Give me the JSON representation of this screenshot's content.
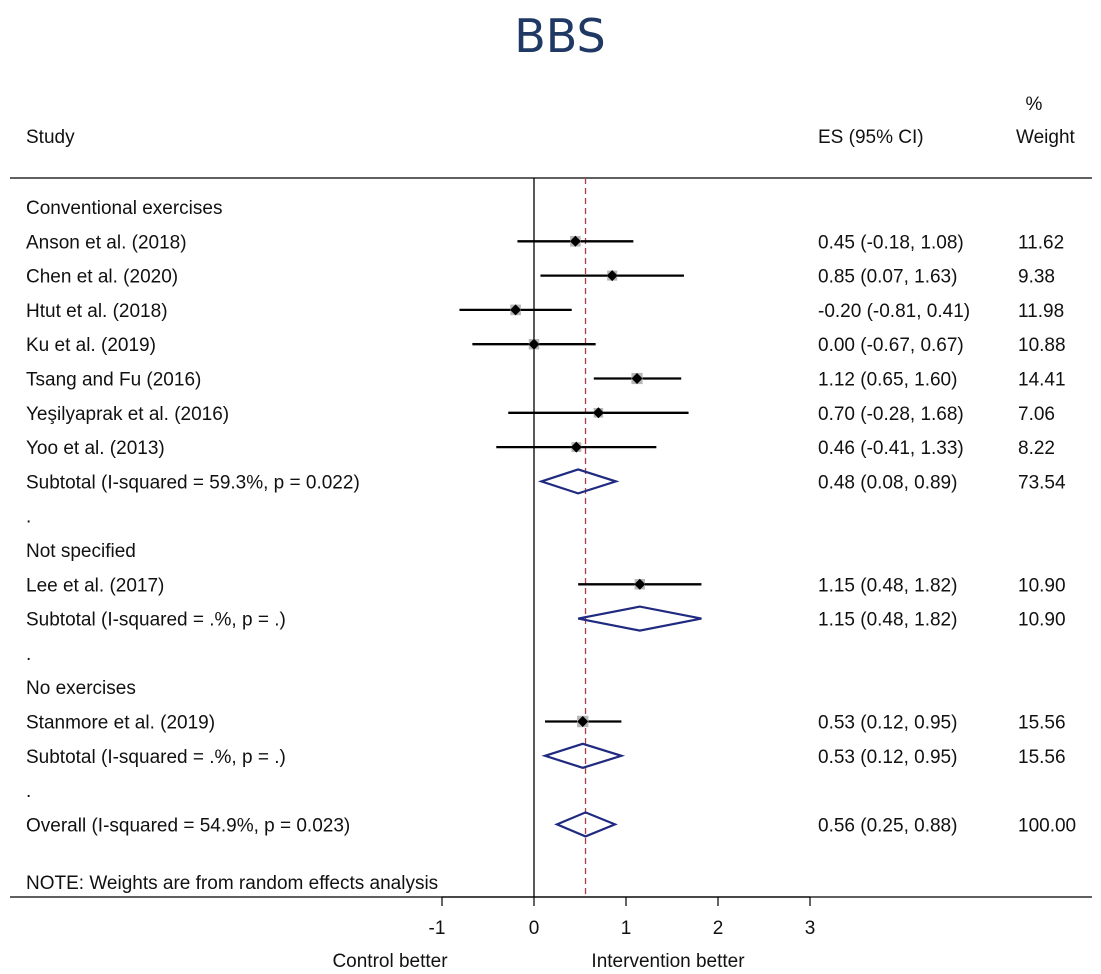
{
  "chart_data": {
    "type": "forest",
    "title": "BBS",
    "headers": {
      "study": "Study",
      "es": "ES (95% CI)",
      "weight_line1": "%",
      "weight_line2": "Weight"
    },
    "rows": [
      {
        "kind": "group",
        "label": "Conventional exercises"
      },
      {
        "kind": "study",
        "label": "Anson et al. (2018)",
        "es": 0.45,
        "lo": -0.18,
        "hi": 1.08,
        "es_text": "0.45 (-0.18, 1.08)",
        "weight": 11.62,
        "weight_text": "11.62"
      },
      {
        "kind": "study",
        "label": "Chen et al. (2020)",
        "es": 0.85,
        "lo": 0.07,
        "hi": 1.63,
        "es_text": "0.85 (0.07, 1.63)",
        "weight": 9.38,
        "weight_text": "9.38"
      },
      {
        "kind": "study",
        "label": "Htut et al. (2018)",
        "es": -0.2,
        "lo": -0.81,
        "hi": 0.41,
        "es_text": "-0.20 (-0.81, 0.41)",
        "weight": 11.98,
        "weight_text": "11.98"
      },
      {
        "kind": "study",
        "label": "Ku et al. (2019)",
        "es": 0.0,
        "lo": -0.67,
        "hi": 0.67,
        "es_text": "0.00 (-0.67, 0.67)",
        "weight": 10.88,
        "weight_text": "10.88"
      },
      {
        "kind": "study",
        "label": "Tsang and Fu (2016)",
        "es": 1.12,
        "lo": 0.65,
        "hi": 1.6,
        "es_text": "1.12 (0.65, 1.60)",
        "weight": 14.41,
        "weight_text": "14.41"
      },
      {
        "kind": "study",
        "label": "Yeşilyaprak et al. (2016)",
        "es": 0.7,
        "lo": -0.28,
        "hi": 1.68,
        "es_text": "0.70 (-0.28, 1.68)",
        "weight": 7.06,
        "weight_text": "7.06"
      },
      {
        "kind": "study",
        "label": "Yoo et al. (2013)",
        "es": 0.46,
        "lo": -0.41,
        "hi": 1.33,
        "es_text": "0.46 (-0.41, 1.33)",
        "weight": 8.22,
        "weight_text": "8.22"
      },
      {
        "kind": "subtotal",
        "label": "Subtotal  (I-squared = 59.3%, p = 0.022)",
        "es": 0.48,
        "lo": 0.08,
        "hi": 0.89,
        "es_text": "0.48 (0.08, 0.89)",
        "weight_text": "73.54"
      },
      {
        "kind": "dot",
        "label": "."
      },
      {
        "kind": "group",
        "label": "Not specified"
      },
      {
        "kind": "study",
        "label": "Lee et al. (2017)",
        "es": 1.15,
        "lo": 0.48,
        "hi": 1.82,
        "es_text": "1.15 (0.48, 1.82)",
        "weight": 10.9,
        "weight_text": "10.90"
      },
      {
        "kind": "subtotal",
        "label": "Subtotal  (I-squared = .%, p = .)",
        "es": 1.15,
        "lo": 0.48,
        "hi": 1.82,
        "es_text": "1.15 (0.48, 1.82)",
        "weight_text": "10.90"
      },
      {
        "kind": "dot",
        "label": "."
      },
      {
        "kind": "group",
        "label": "No exercises"
      },
      {
        "kind": "study",
        "label": "Stanmore et al. (2019)",
        "es": 0.53,
        "lo": 0.12,
        "hi": 0.95,
        "es_text": "0.53 (0.12, 0.95)",
        "weight": 15.56,
        "weight_text": "15.56"
      },
      {
        "kind": "subtotal",
        "label": "Subtotal  (I-squared = .%, p = .)",
        "es": 0.53,
        "lo": 0.12,
        "hi": 0.95,
        "es_text": "0.53 (0.12, 0.95)",
        "weight_text": "15.56"
      },
      {
        "kind": "dot",
        "label": "."
      },
      {
        "kind": "overall",
        "label": "Overall  (I-squared = 54.9%, p = 0.023)",
        "es": 0.56,
        "lo": 0.25,
        "hi": 0.88,
        "es_text": "0.56 (0.25, 0.88)",
        "weight_text": "100.00"
      }
    ],
    "note": "NOTE: Weights are from random effects analysis",
    "xticks": [
      -1,
      0,
      1,
      2,
      3
    ],
    "xtick_labels": [
      "-1",
      "0",
      "1",
      "2",
      "3"
    ],
    "xlim": [
      -1,
      3
    ],
    "null_line": 0,
    "overall_line": 0.56,
    "xlabel_left": "Control better",
    "xlabel_right": "Intervention better",
    "colors": {
      "title": "#1f3864",
      "diamond": "#1f2a80",
      "overall_line": "#b03a48",
      "weight_box": "#b7b7b7",
      "point": "#000000"
    }
  }
}
